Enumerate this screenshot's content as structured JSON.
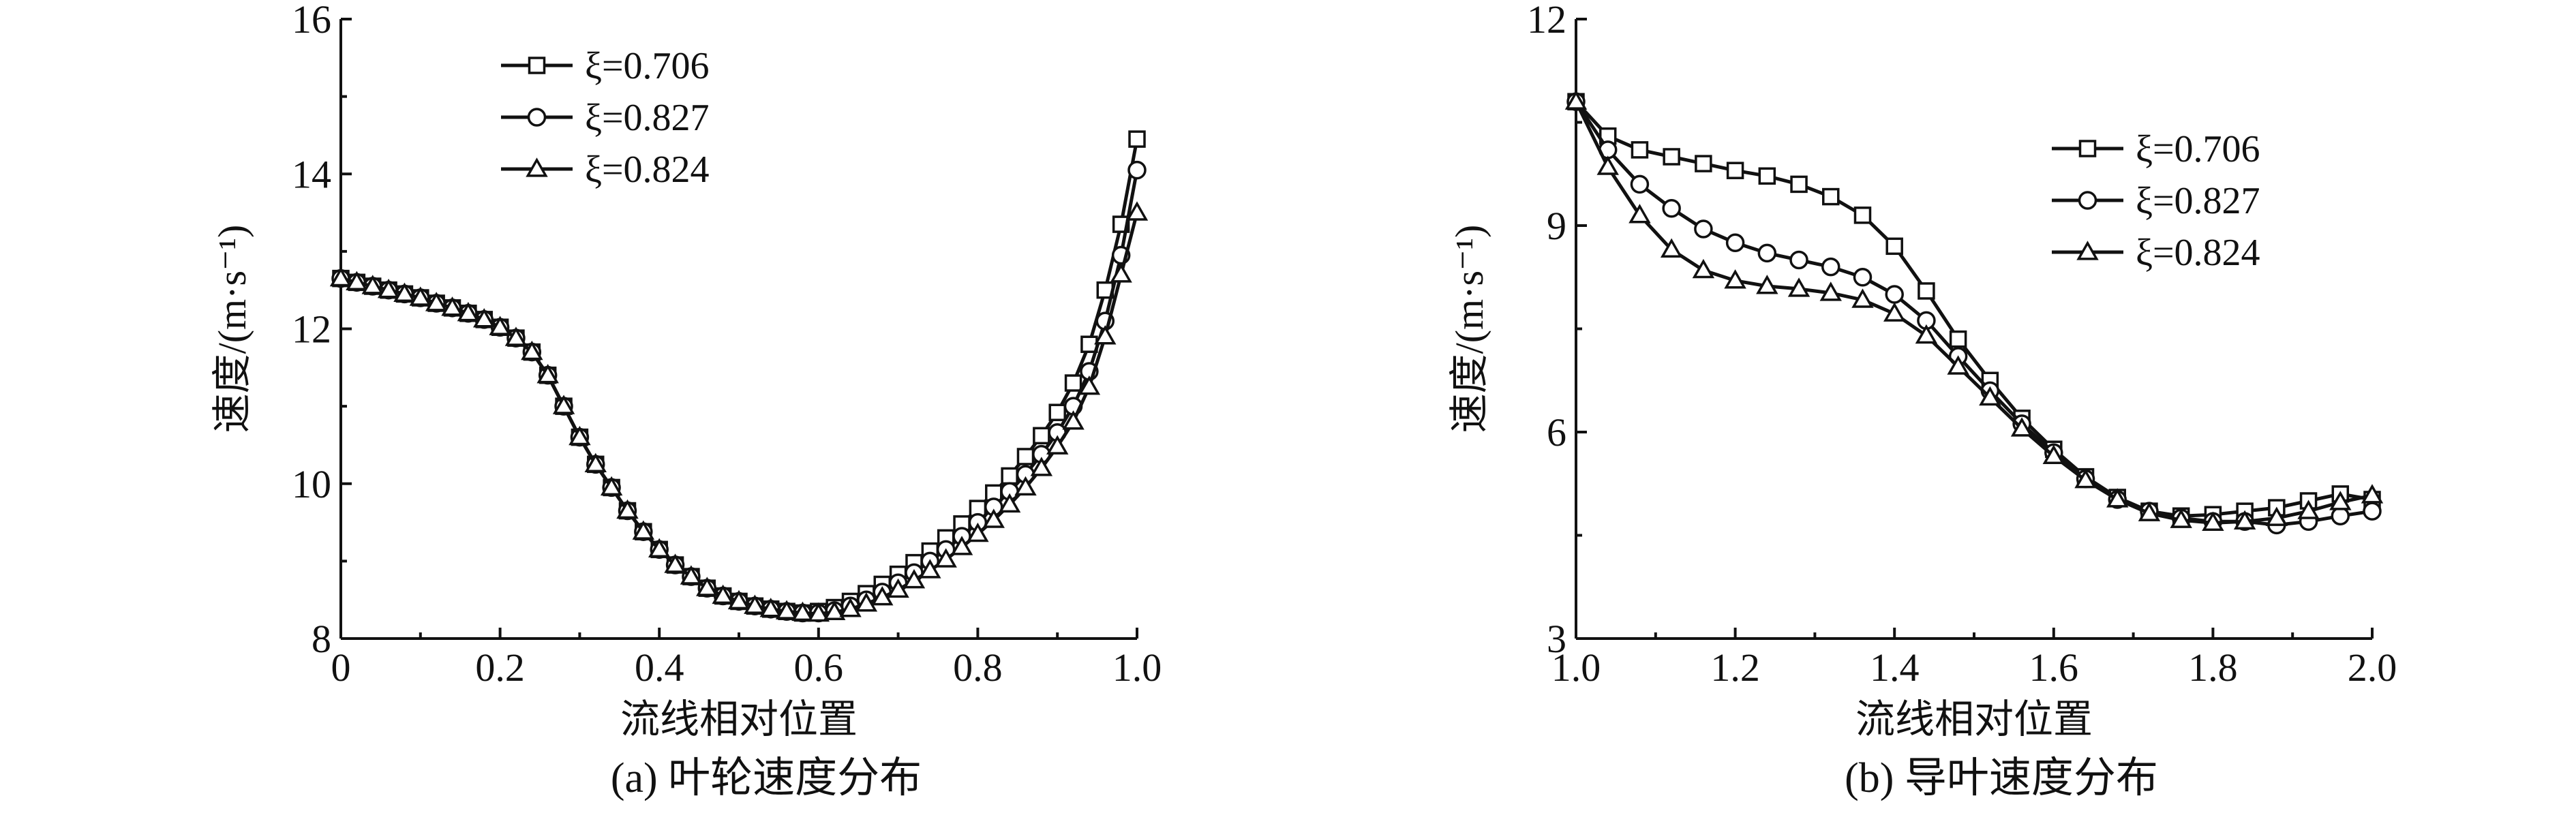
{
  "chart_data": [
    {
      "type": "line",
      "caption": "(a) 叶轮速度分布",
      "xlabel": "流线相对位置",
      "ylabel": "速度/(m·s⁻¹)",
      "xlim": [
        0,
        1.0
      ],
      "ylim": [
        8,
        16
      ],
      "xticks": [
        0,
        0.2,
        0.4,
        0.6,
        0.8,
        1.0
      ],
      "xtick_labels": [
        "0",
        "0.2",
        "0.4",
        "0.6",
        "0.8",
        "1.0"
      ],
      "yticks": [
        8,
        10,
        12,
        14,
        16
      ],
      "ytick_labels": [
        "8",
        "10",
        "12",
        "14",
        "16"
      ],
      "legend_position": "top-left",
      "series": [
        {
          "name": "ξ=0.706",
          "marker": "square",
          "x": [
            0,
            0.02,
            0.04,
            0.06,
            0.08,
            0.1,
            0.12,
            0.14,
            0.16,
            0.18,
            0.2,
            0.22,
            0.24,
            0.26,
            0.28,
            0.3,
            0.32,
            0.34,
            0.36,
            0.38,
            0.4,
            0.42,
            0.44,
            0.46,
            0.48,
            0.5,
            0.52,
            0.54,
            0.56,
            0.58,
            0.6,
            0.62,
            0.64,
            0.66,
            0.68,
            0.7,
            0.72,
            0.74,
            0.76,
            0.78,
            0.8,
            0.82,
            0.84,
            0.86,
            0.88,
            0.9,
            0.92,
            0.94,
            0.96,
            0.98,
            1.0
          ],
          "y": [
            12.65,
            12.6,
            12.55,
            12.5,
            12.45,
            12.4,
            12.33,
            12.27,
            12.2,
            12.12,
            12.02,
            11.88,
            11.7,
            11.4,
            11.0,
            10.6,
            10.25,
            9.95,
            9.65,
            9.38,
            9.15,
            8.95,
            8.8,
            8.65,
            8.55,
            8.48,
            8.42,
            8.38,
            8.35,
            8.33,
            8.35,
            8.4,
            8.48,
            8.58,
            8.7,
            8.83,
            8.98,
            9.13,
            9.3,
            9.48,
            9.68,
            9.88,
            10.1,
            10.35,
            10.62,
            10.92,
            11.3,
            11.8,
            12.5,
            13.35,
            14.45
          ]
        },
        {
          "name": "ξ=0.827",
          "marker": "circle",
          "x": [
            0,
            0.02,
            0.04,
            0.06,
            0.08,
            0.1,
            0.12,
            0.14,
            0.16,
            0.18,
            0.2,
            0.22,
            0.24,
            0.26,
            0.28,
            0.3,
            0.32,
            0.34,
            0.36,
            0.38,
            0.4,
            0.42,
            0.44,
            0.46,
            0.48,
            0.5,
            0.52,
            0.54,
            0.56,
            0.58,
            0.6,
            0.62,
            0.64,
            0.66,
            0.68,
            0.7,
            0.72,
            0.74,
            0.76,
            0.78,
            0.8,
            0.82,
            0.84,
            0.86,
            0.88,
            0.9,
            0.92,
            0.94,
            0.96,
            0.98,
            1.0
          ],
          "y": [
            12.65,
            12.6,
            12.55,
            12.5,
            12.45,
            12.4,
            12.33,
            12.27,
            12.2,
            12.12,
            12.02,
            11.88,
            11.7,
            11.4,
            11.0,
            10.6,
            10.25,
            9.95,
            9.65,
            9.38,
            9.15,
            8.95,
            8.8,
            8.65,
            8.55,
            8.48,
            8.42,
            8.38,
            8.35,
            8.33,
            8.33,
            8.36,
            8.42,
            8.5,
            8.6,
            8.72,
            8.85,
            9.0,
            9.15,
            9.32,
            9.5,
            9.7,
            9.9,
            10.12,
            10.38,
            10.66,
            11.0,
            11.45,
            12.1,
            12.95,
            14.05
          ]
        },
        {
          "name": "ξ=0.824",
          "marker": "triangle",
          "x": [
            0,
            0.02,
            0.04,
            0.06,
            0.08,
            0.1,
            0.12,
            0.14,
            0.16,
            0.18,
            0.2,
            0.22,
            0.24,
            0.26,
            0.28,
            0.3,
            0.32,
            0.34,
            0.36,
            0.38,
            0.4,
            0.42,
            0.44,
            0.46,
            0.48,
            0.5,
            0.52,
            0.54,
            0.56,
            0.58,
            0.6,
            0.62,
            0.64,
            0.66,
            0.68,
            0.7,
            0.72,
            0.74,
            0.76,
            0.78,
            0.8,
            0.82,
            0.84,
            0.86,
            0.88,
            0.9,
            0.92,
            0.94,
            0.96,
            0.98,
            1.0
          ],
          "y": [
            12.65,
            12.6,
            12.55,
            12.5,
            12.45,
            12.4,
            12.33,
            12.27,
            12.2,
            12.12,
            12.02,
            11.88,
            11.7,
            11.4,
            11.0,
            10.6,
            10.25,
            9.95,
            9.65,
            9.38,
            9.15,
            8.95,
            8.8,
            8.65,
            8.55,
            8.48,
            8.42,
            8.38,
            8.35,
            8.33,
            8.32,
            8.34,
            8.38,
            8.45,
            8.53,
            8.63,
            8.75,
            8.88,
            9.02,
            9.18,
            9.35,
            9.53,
            9.73,
            9.95,
            10.2,
            10.48,
            10.8,
            11.25,
            11.9,
            12.7,
            13.5
          ]
        }
      ]
    },
    {
      "type": "line",
      "caption": "(b) 导叶速度分布",
      "xlabel": "流线相对位置",
      "ylabel": "速度/(m·s⁻¹)",
      "xlim": [
        1.0,
        2.0
      ],
      "ylim": [
        3,
        12
      ],
      "xticks": [
        1.0,
        1.2,
        1.4,
        1.6,
        1.8,
        2.0
      ],
      "xtick_labels": [
        "1.0",
        "1.2",
        "1.4",
        "1.6",
        "1.8",
        "2.0"
      ],
      "yticks": [
        3,
        6,
        9,
        12
      ],
      "ytick_labels": [
        "3",
        "6",
        "9",
        "12"
      ],
      "legend_position": "top-right",
      "series": [
        {
          "name": "ξ=0.706",
          "marker": "square",
          "x": [
            1.0,
            1.04,
            1.08,
            1.12,
            1.16,
            1.2,
            1.24,
            1.28,
            1.32,
            1.36,
            1.4,
            1.44,
            1.48,
            1.52,
            1.56,
            1.6,
            1.64,
            1.68,
            1.72,
            1.76,
            1.8,
            1.84,
            1.88,
            1.92,
            1.96,
            2.0
          ],
          "y": [
            10.8,
            10.3,
            10.1,
            10.0,
            9.9,
            9.8,
            9.72,
            9.6,
            9.42,
            9.15,
            8.7,
            8.05,
            7.35,
            6.75,
            6.2,
            5.75,
            5.35,
            5.05,
            4.85,
            4.78,
            4.8,
            4.85,
            4.9,
            5.0,
            5.1,
            5.02
          ]
        },
        {
          "name": "ξ=0.827",
          "marker": "circle",
          "x": [
            1.0,
            1.04,
            1.08,
            1.12,
            1.16,
            1.2,
            1.24,
            1.28,
            1.32,
            1.36,
            1.4,
            1.44,
            1.48,
            1.52,
            1.56,
            1.6,
            1.64,
            1.68,
            1.72,
            1.76,
            1.8,
            1.84,
            1.88,
            1.92,
            1.96,
            2.0
          ],
          "y": [
            10.8,
            10.1,
            9.6,
            9.25,
            8.95,
            8.75,
            8.6,
            8.5,
            8.4,
            8.25,
            8.0,
            7.62,
            7.1,
            6.6,
            6.12,
            5.7,
            5.32,
            5.02,
            4.85,
            4.75,
            4.7,
            4.7,
            4.65,
            4.7,
            4.78,
            4.85
          ]
        },
        {
          "name": "ξ=0.824",
          "marker": "triangle",
          "x": [
            1.0,
            1.04,
            1.08,
            1.12,
            1.16,
            1.2,
            1.24,
            1.28,
            1.32,
            1.36,
            1.4,
            1.44,
            1.48,
            1.52,
            1.56,
            1.6,
            1.64,
            1.68,
            1.72,
            1.76,
            1.8,
            1.84,
            1.88,
            1.92,
            1.96,
            2.0
          ],
          "y": [
            10.8,
            9.85,
            9.15,
            8.65,
            8.35,
            8.2,
            8.12,
            8.08,
            8.02,
            7.92,
            7.72,
            7.4,
            6.95,
            6.5,
            6.05,
            5.65,
            5.3,
            5.02,
            4.82,
            4.72,
            4.68,
            4.7,
            4.75,
            4.85,
            4.98,
            5.08
          ]
        }
      ]
    }
  ]
}
